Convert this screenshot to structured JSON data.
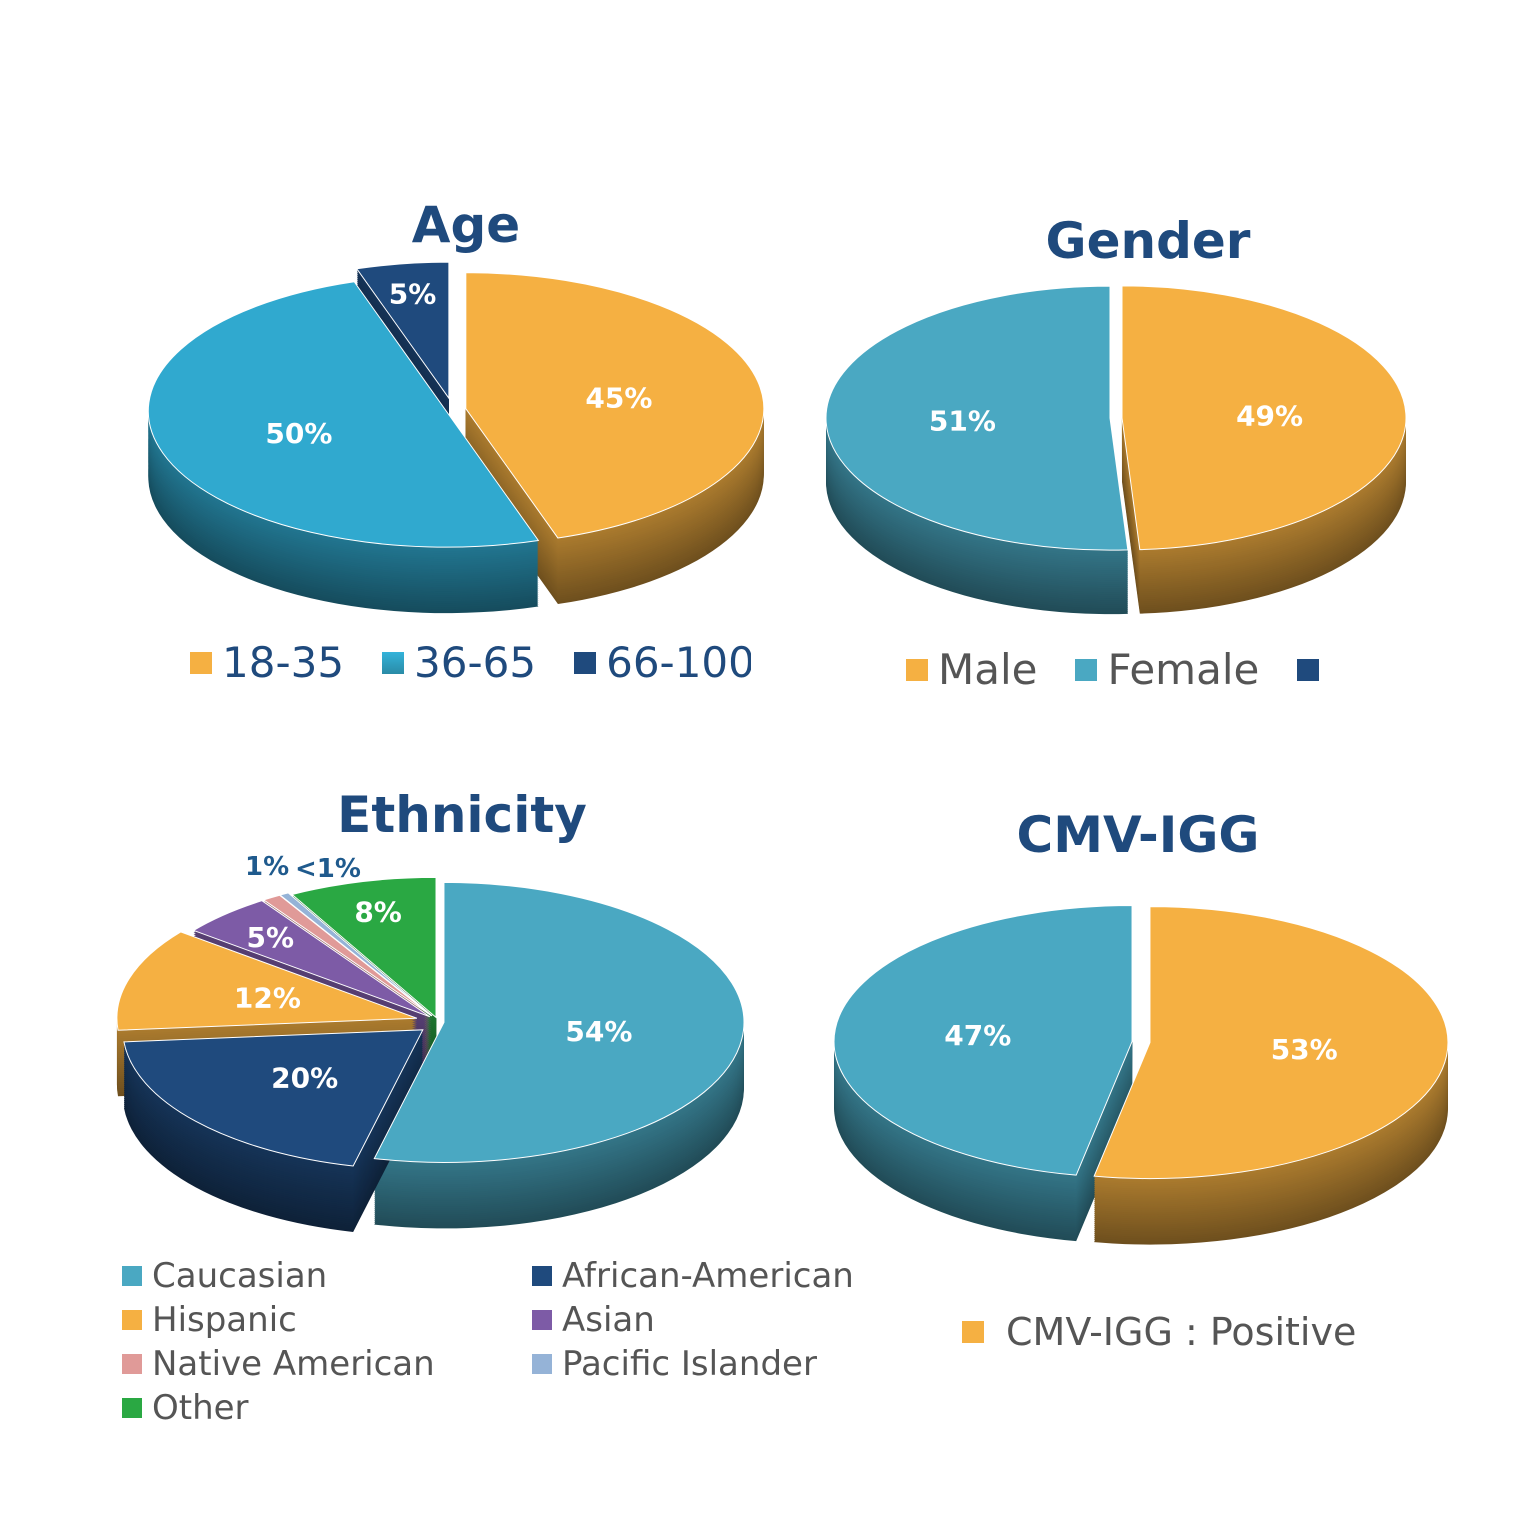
{
  "chart_data": [
    {
      "type": "pie",
      "title": "Age",
      "categories": [
        "18-35",
        "36-65",
        "66-100"
      ],
      "values": [
        45,
        50,
        5
      ],
      "labels": [
        "45%",
        "50%",
        "5%"
      ],
      "colors": [
        "#F5B042",
        "#30A9CF",
        "#1F4A7D"
      ],
      "legend_placement": "bottom",
      "three_d": true
    },
    {
      "type": "pie",
      "title": "Gender",
      "categories": [
        "Male",
        "Female"
      ],
      "values": [
        49,
        51
      ],
      "labels": [
        "49%",
        "51%"
      ],
      "colors": [
        "#F5B042",
        "#4AA8C2",
        "#1F4A7D"
      ],
      "legend_placement": "bottom",
      "three_d": true
    },
    {
      "type": "pie",
      "title": "Ethnicity",
      "categories": [
        "Caucasian",
        "African-American",
        "Hispanic",
        "Asian",
        "Native American",
        "Pacific Islander",
        "Other"
      ],
      "values": [
        54,
        20,
        12,
        5,
        1,
        0.5,
        8
      ],
      "labels": [
        "54%",
        "20%",
        "12%",
        "5%",
        "1%",
        "<1%",
        "8%"
      ],
      "colors": [
        "#4AA8C2",
        "#1F4A7D",
        "#F5B042",
        "#7D5BA6",
        "#E09A98",
        "#95B3D7",
        "#2AA843"
      ],
      "legend_order": [
        "Caucasian",
        "African-American",
        "Hispanic",
        "Asian",
        "Native American",
        "Pacific Islander",
        "Other"
      ],
      "legend_placement": "bottom",
      "three_d": true
    },
    {
      "type": "pie",
      "title": "CMV-IGG",
      "categories": [
        "CMV-IGG : Positive",
        ""
      ],
      "values": [
        53,
        47
      ],
      "labels": [
        "53%",
        "47%"
      ],
      "colors": [
        "#F5B042",
        "#4AA8C2"
      ],
      "legend_placement": "bottom",
      "three_d": true
    }
  ]
}
